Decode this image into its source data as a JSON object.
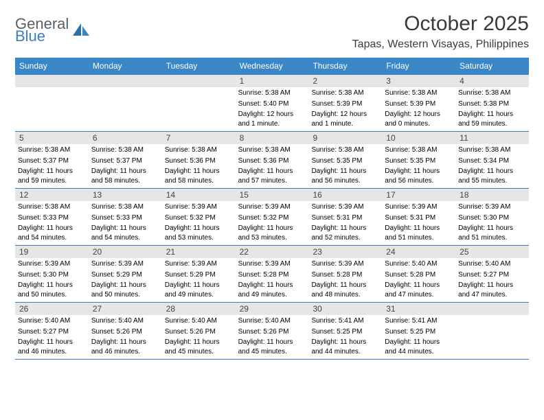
{
  "logo": {
    "word1": "General",
    "word2": "Blue"
  },
  "title": "October 2025",
  "location": "Tapas, Western Visayas, Philippines",
  "colors": {
    "header_bg": "#3a87c8",
    "border": "#3a7ebf",
    "daynum_bg": "#e6e6e6",
    "text": "#000000",
    "logo_gray": "#555f66",
    "logo_blue": "#3a7ebf"
  },
  "weekdays": [
    "Sunday",
    "Monday",
    "Tuesday",
    "Wednesday",
    "Thursday",
    "Friday",
    "Saturday"
  ],
  "weeks": [
    [
      {
        "n": "",
        "sr": "",
        "ss": "",
        "dl": ""
      },
      {
        "n": "",
        "sr": "",
        "ss": "",
        "dl": ""
      },
      {
        "n": "",
        "sr": "",
        "ss": "",
        "dl": ""
      },
      {
        "n": "1",
        "sr": "Sunrise: 5:38 AM",
        "ss": "Sunset: 5:40 PM",
        "dl": "Daylight: 12 hours and 1 minute."
      },
      {
        "n": "2",
        "sr": "Sunrise: 5:38 AM",
        "ss": "Sunset: 5:39 PM",
        "dl": "Daylight: 12 hours and 1 minute."
      },
      {
        "n": "3",
        "sr": "Sunrise: 5:38 AM",
        "ss": "Sunset: 5:39 PM",
        "dl": "Daylight: 12 hours and 0 minutes."
      },
      {
        "n": "4",
        "sr": "Sunrise: 5:38 AM",
        "ss": "Sunset: 5:38 PM",
        "dl": "Daylight: 11 hours and 59 minutes."
      }
    ],
    [
      {
        "n": "5",
        "sr": "Sunrise: 5:38 AM",
        "ss": "Sunset: 5:37 PM",
        "dl": "Daylight: 11 hours and 59 minutes."
      },
      {
        "n": "6",
        "sr": "Sunrise: 5:38 AM",
        "ss": "Sunset: 5:37 PM",
        "dl": "Daylight: 11 hours and 58 minutes."
      },
      {
        "n": "7",
        "sr": "Sunrise: 5:38 AM",
        "ss": "Sunset: 5:36 PM",
        "dl": "Daylight: 11 hours and 58 minutes."
      },
      {
        "n": "8",
        "sr": "Sunrise: 5:38 AM",
        "ss": "Sunset: 5:36 PM",
        "dl": "Daylight: 11 hours and 57 minutes."
      },
      {
        "n": "9",
        "sr": "Sunrise: 5:38 AM",
        "ss": "Sunset: 5:35 PM",
        "dl": "Daylight: 11 hours and 56 minutes."
      },
      {
        "n": "10",
        "sr": "Sunrise: 5:38 AM",
        "ss": "Sunset: 5:35 PM",
        "dl": "Daylight: 11 hours and 56 minutes."
      },
      {
        "n": "11",
        "sr": "Sunrise: 5:38 AM",
        "ss": "Sunset: 5:34 PM",
        "dl": "Daylight: 11 hours and 55 minutes."
      }
    ],
    [
      {
        "n": "12",
        "sr": "Sunrise: 5:38 AM",
        "ss": "Sunset: 5:33 PM",
        "dl": "Daylight: 11 hours and 54 minutes."
      },
      {
        "n": "13",
        "sr": "Sunrise: 5:38 AM",
        "ss": "Sunset: 5:33 PM",
        "dl": "Daylight: 11 hours and 54 minutes."
      },
      {
        "n": "14",
        "sr": "Sunrise: 5:39 AM",
        "ss": "Sunset: 5:32 PM",
        "dl": "Daylight: 11 hours and 53 minutes."
      },
      {
        "n": "15",
        "sr": "Sunrise: 5:39 AM",
        "ss": "Sunset: 5:32 PM",
        "dl": "Daylight: 11 hours and 53 minutes."
      },
      {
        "n": "16",
        "sr": "Sunrise: 5:39 AM",
        "ss": "Sunset: 5:31 PM",
        "dl": "Daylight: 11 hours and 52 minutes."
      },
      {
        "n": "17",
        "sr": "Sunrise: 5:39 AM",
        "ss": "Sunset: 5:31 PM",
        "dl": "Daylight: 11 hours and 51 minutes."
      },
      {
        "n": "18",
        "sr": "Sunrise: 5:39 AM",
        "ss": "Sunset: 5:30 PM",
        "dl": "Daylight: 11 hours and 51 minutes."
      }
    ],
    [
      {
        "n": "19",
        "sr": "Sunrise: 5:39 AM",
        "ss": "Sunset: 5:30 PM",
        "dl": "Daylight: 11 hours and 50 minutes."
      },
      {
        "n": "20",
        "sr": "Sunrise: 5:39 AM",
        "ss": "Sunset: 5:29 PM",
        "dl": "Daylight: 11 hours and 50 minutes."
      },
      {
        "n": "21",
        "sr": "Sunrise: 5:39 AM",
        "ss": "Sunset: 5:29 PM",
        "dl": "Daylight: 11 hours and 49 minutes."
      },
      {
        "n": "22",
        "sr": "Sunrise: 5:39 AM",
        "ss": "Sunset: 5:28 PM",
        "dl": "Daylight: 11 hours and 49 minutes."
      },
      {
        "n": "23",
        "sr": "Sunrise: 5:39 AM",
        "ss": "Sunset: 5:28 PM",
        "dl": "Daylight: 11 hours and 48 minutes."
      },
      {
        "n": "24",
        "sr": "Sunrise: 5:40 AM",
        "ss": "Sunset: 5:28 PM",
        "dl": "Daylight: 11 hours and 47 minutes."
      },
      {
        "n": "25",
        "sr": "Sunrise: 5:40 AM",
        "ss": "Sunset: 5:27 PM",
        "dl": "Daylight: 11 hours and 47 minutes."
      }
    ],
    [
      {
        "n": "26",
        "sr": "Sunrise: 5:40 AM",
        "ss": "Sunset: 5:27 PM",
        "dl": "Daylight: 11 hours and 46 minutes."
      },
      {
        "n": "27",
        "sr": "Sunrise: 5:40 AM",
        "ss": "Sunset: 5:26 PM",
        "dl": "Daylight: 11 hours and 46 minutes."
      },
      {
        "n": "28",
        "sr": "Sunrise: 5:40 AM",
        "ss": "Sunset: 5:26 PM",
        "dl": "Daylight: 11 hours and 45 minutes."
      },
      {
        "n": "29",
        "sr": "Sunrise: 5:40 AM",
        "ss": "Sunset: 5:26 PM",
        "dl": "Daylight: 11 hours and 45 minutes."
      },
      {
        "n": "30",
        "sr": "Sunrise: 5:41 AM",
        "ss": "Sunset: 5:25 PM",
        "dl": "Daylight: 11 hours and 44 minutes."
      },
      {
        "n": "31",
        "sr": "Sunrise: 5:41 AM",
        "ss": "Sunset: 5:25 PM",
        "dl": "Daylight: 11 hours and 44 minutes."
      },
      {
        "n": "",
        "sr": "",
        "ss": "",
        "dl": ""
      }
    ]
  ]
}
